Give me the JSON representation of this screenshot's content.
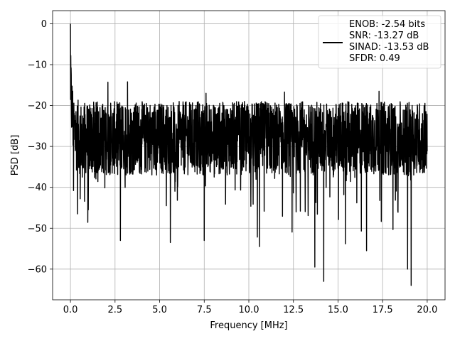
{
  "chart_data": {
    "type": "line",
    "xlabel": "Frequency [MHz]",
    "ylabel": "PSD [dB]",
    "xlim": [
      -1.0,
      21.0
    ],
    "ylim": [
      -67.5,
      3.2
    ],
    "xticks": [
      0.0,
      2.5,
      5.0,
      7.5,
      10.0,
      12.5,
      15.0,
      17.5,
      20.0
    ],
    "xtick_labels": [
      "0.0",
      "2.5",
      "5.0",
      "7.5",
      "10.0",
      "12.5",
      "15.0",
      "17.5",
      "20.0"
    ],
    "yticks": [
      0,
      -10,
      -20,
      -30,
      -40,
      -50,
      -60
    ],
    "ytick_labels": [
      "0",
      "−10",
      "−20",
      "−30",
      "−40",
      "−50",
      "−60"
    ],
    "grid": true,
    "legend": {
      "placement": "top-right",
      "lines": [
        "ENOB: -2.54 bits",
        "SNR: -13.27 dB",
        "SINAD: -13.53 dB",
        "SFDR: 0.49"
      ]
    },
    "series": [
      {
        "color": "#000000",
        "x_range": [
          0.0,
          20.0
        ],
        "peak": {
          "x": 0.0,
          "y": 0.0
        },
        "median_level": -28,
        "upper_envelope": -15,
        "notable_minima": [
          {
            "x": 0.4,
            "y": -46.5
          },
          {
            "x": 1.0,
            "y": -45.5
          },
          {
            "x": 2.8,
            "y": -53.0
          },
          {
            "x": 5.6,
            "y": -53.5
          },
          {
            "x": 7.5,
            "y": -53.0
          },
          {
            "x": 10.6,
            "y": -54.5
          },
          {
            "x": 13.7,
            "y": -59.5
          },
          {
            "x": 14.2,
            "y": -63.0
          },
          {
            "x": 16.6,
            "y": -55.5
          },
          {
            "x": 18.9,
            "y": -60.0
          },
          {
            "x": 19.1,
            "y": -64.0
          }
        ],
        "notable_maxima": [
          {
            "x": 2.1,
            "y": -14.3
          },
          {
            "x": 3.2,
            "y": -14.2
          },
          {
            "x": 7.6,
            "y": -17.0
          },
          {
            "x": 12.0,
            "y": -16.7
          },
          {
            "x": 17.3,
            "y": -16.5
          }
        ]
      }
    ]
  }
}
